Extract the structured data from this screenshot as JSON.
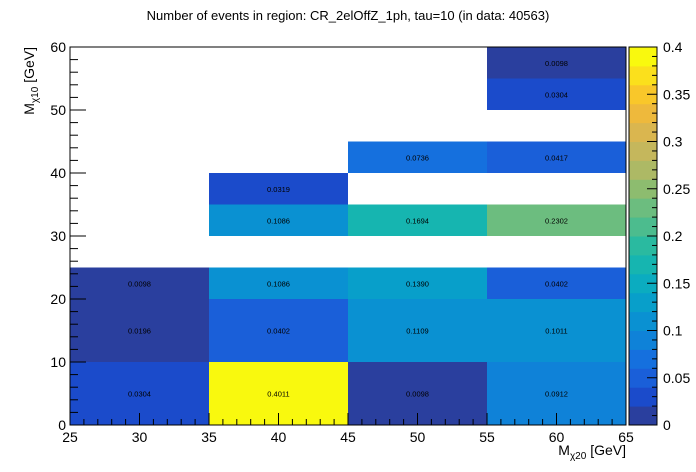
{
  "chart_data": {
    "type": "heatmap",
    "title": "Number of events in region: CR_2elOffZ_1ph, tau=10 (in data: 40563)",
    "xlabel": {
      "main": "M",
      "sub": "χ20",
      "unit": " [GeV]"
    },
    "ylabel": {
      "main": "M",
      "sub": "χ10",
      "unit": " [GeV]"
    },
    "xlim": [
      25,
      65
    ],
    "ylim": [
      0,
      60
    ],
    "zlim": [
      0,
      0.4
    ],
    "x_ticks": [
      "25",
      "30",
      "35",
      "40",
      "45",
      "50",
      "55",
      "60",
      "65"
    ],
    "y_ticks": [
      "0",
      "10",
      "20",
      "30",
      "40",
      "50",
      "60"
    ],
    "z_ticks": [
      "0",
      "0.05",
      "0.1",
      "0.15",
      "0.2",
      "0.25",
      "0.3",
      "0.35",
      "0.4"
    ],
    "cells": [
      {
        "x0": 25,
        "x1": 35,
        "y0": 0,
        "y1": 10,
        "value": 0.0304,
        "label": "0.0304"
      },
      {
        "x0": 35,
        "x1": 45,
        "y0": 0,
        "y1": 10,
        "value": 0.4011,
        "label": "0.4011"
      },
      {
        "x0": 45,
        "x1": 55,
        "y0": 0,
        "y1": 10,
        "value": 0.0098,
        "label": "0.0098"
      },
      {
        "x0": 55,
        "x1": 65,
        "y0": 0,
        "y1": 10,
        "value": 0.0912,
        "label": "0.0912"
      },
      {
        "x0": 25,
        "x1": 35,
        "y0": 10,
        "y1": 20,
        "value": 0.0196,
        "label": "0.0196"
      },
      {
        "x0": 35,
        "x1": 45,
        "y0": 10,
        "y1": 20,
        "value": 0.0402,
        "label": "0.0402"
      },
      {
        "x0": 45,
        "x1": 55,
        "y0": 10,
        "y1": 20,
        "value": 0.1109,
        "label": "0.1109"
      },
      {
        "x0": 55,
        "x1": 65,
        "y0": 10,
        "y1": 20,
        "value": 0.1011,
        "label": "0.1011"
      },
      {
        "x0": 25,
        "x1": 35,
        "y0": 20,
        "y1": 25,
        "value": 0.0098,
        "label": "0.0098"
      },
      {
        "x0": 35,
        "x1": 45,
        "y0": 20,
        "y1": 25,
        "value": 0.1086,
        "label": "0.1086"
      },
      {
        "x0": 45,
        "x1": 55,
        "y0": 20,
        "y1": 25,
        "value": 0.139,
        "label": "0.1390"
      },
      {
        "x0": 55,
        "x1": 65,
        "y0": 20,
        "y1": 25,
        "value": 0.0402,
        "label": "0.0402"
      },
      {
        "x0": 35,
        "x1": 45,
        "y0": 30,
        "y1": 35,
        "value": 0.1086,
        "label": "0.1086"
      },
      {
        "x0": 45,
        "x1": 55,
        "y0": 30,
        "y1": 35,
        "value": 0.1694,
        "label": "0.1694"
      },
      {
        "x0": 55,
        "x1": 65,
        "y0": 30,
        "y1": 35,
        "value": 0.2302,
        "label": "0.2302"
      },
      {
        "x0": 35,
        "x1": 45,
        "y0": 35,
        "y1": 40,
        "value": 0.0319,
        "label": "0.0319"
      },
      {
        "x0": 45,
        "x1": 55,
        "y0": 40,
        "y1": 45,
        "value": 0.0736,
        "label": "0.0736"
      },
      {
        "x0": 55,
        "x1": 65,
        "y0": 40,
        "y1": 45,
        "value": 0.0417,
        "label": "0.0417"
      },
      {
        "x0": 55,
        "x1": 65,
        "y0": 50,
        "y1": 55,
        "value": 0.0304,
        "label": "0.0304"
      },
      {
        "x0": 55,
        "x1": 65,
        "y0": 55,
        "y1": 60,
        "value": 0.0098,
        "label": "0.0098"
      }
    ],
    "palette": [
      "#2a3f9e",
      "#1b4bcb",
      "#1a5fd9",
      "#1570de",
      "#0f82d8",
      "#0a91d2",
      "#089fca",
      "#0bacc0",
      "#16b5b0",
      "#2abaa0",
      "#4cbc8e",
      "#6cbd7f",
      "#8dbc6f",
      "#adb965",
      "#c5b75c",
      "#dab64f",
      "#eeb93c",
      "#f9c72a",
      "#fbe01c",
      "#f9f90e"
    ]
  }
}
